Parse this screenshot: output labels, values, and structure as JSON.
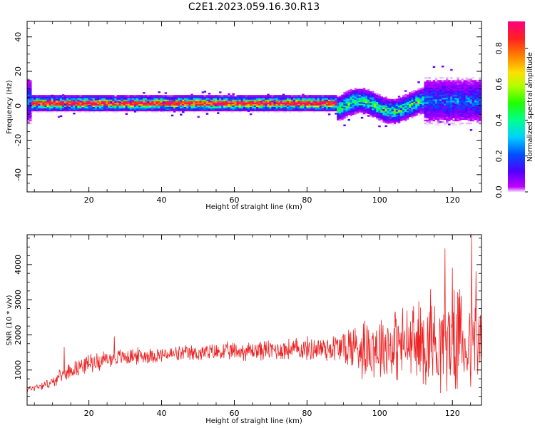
{
  "title": "C2E1.2023.059.16.30.R13",
  "chart_data": [
    {
      "type": "heatmap",
      "title": "",
      "xlabel": "Height of straight line (km)",
      "ylabel": "Frequency (Hz)",
      "xlim": [
        3,
        128
      ],
      "ylim": [
        -50,
        49
      ],
      "xticks": [
        20,
        40,
        60,
        80,
        100,
        120
      ],
      "yticks": [
        -40,
        -20,
        0,
        20,
        40
      ],
      "colorbar": {
        "label": "Normalized spectral amplitude",
        "range": [
          0,
          0.95
        ],
        "ticks": [
          "0.0",
          "0.2",
          "0.4",
          "0.6",
          "0.8"
        ],
        "tick_values": [
          0,
          0.2,
          0.4,
          0.6,
          0.8
        ],
        "colormap": "gist_rainbow_r"
      },
      "band_description": [
        {
          "x_range": [
            4,
            88
          ],
          "center_hz": 1.5,
          "spread_hz": 5,
          "peak_amplitude": 0.95
        },
        {
          "x_range": [
            88,
            112
          ],
          "center_hz": 0,
          "spread_hz": 8,
          "peak_amplitude": 0.55
        },
        {
          "x_range": [
            112,
            128
          ],
          "center_hz": 3,
          "spread_hz": 14,
          "peak_amplitude": 0.3
        }
      ]
    },
    {
      "type": "line",
      "title": "",
      "xlabel": "Height of straight line (km)",
      "ylabel": "SNR (10 * v/v)",
      "xlim": [
        3,
        128
      ],
      "ylim": [
        0,
        4850
      ],
      "xticks": [
        20,
        40,
        60,
        80,
        100,
        120
      ],
      "yticks": [
        1000,
        2000,
        3000,
        4000
      ],
      "color": "#ee2222",
      "trend_points": [
        {
          "x": 3,
          "y": 450
        },
        {
          "x": 10,
          "y": 650
        },
        {
          "x": 13,
          "y": 900
        },
        {
          "x": 15,
          "y": 1000
        },
        {
          "x": 20,
          "y": 1200
        },
        {
          "x": 25,
          "y": 1300
        },
        {
          "x": 30,
          "y": 1380
        },
        {
          "x": 40,
          "y": 1430
        },
        {
          "x": 50,
          "y": 1480
        },
        {
          "x": 60,
          "y": 1530
        },
        {
          "x": 70,
          "y": 1570
        },
        {
          "x": 80,
          "y": 1600
        },
        {
          "x": 90,
          "y": 1650
        },
        {
          "x": 100,
          "y": 1700
        },
        {
          "x": 110,
          "y": 1750
        },
        {
          "x": 120,
          "y": 1800
        },
        {
          "x": 128,
          "y": 1750
        }
      ],
      "amplitude_points": [
        {
          "x": 3,
          "y": 100
        },
        {
          "x": 12,
          "y": 200
        },
        {
          "x": 20,
          "y": 300
        },
        {
          "x": 40,
          "y": 250
        },
        {
          "x": 60,
          "y": 300
        },
        {
          "x": 80,
          "y": 380
        },
        {
          "x": 88,
          "y": 500
        },
        {
          "x": 95,
          "y": 1000
        },
        {
          "x": 105,
          "y": 1200
        },
        {
          "x": 115,
          "y": 1500
        },
        {
          "x": 128,
          "y": 1700
        }
      ],
      "notable_peaks": [
        {
          "x": 13.2,
          "y": 1650
        },
        {
          "x": 27,
          "y": 1950
        },
        {
          "x": 114,
          "y": 3300
        },
        {
          "x": 118,
          "y": 4450
        },
        {
          "x": 120,
          "y": 3900
        },
        {
          "x": 122,
          "y": 3300
        },
        {
          "x": 125.3,
          "y": 4850
        },
        {
          "x": 126.5,
          "y": 3800
        }
      ]
    }
  ]
}
